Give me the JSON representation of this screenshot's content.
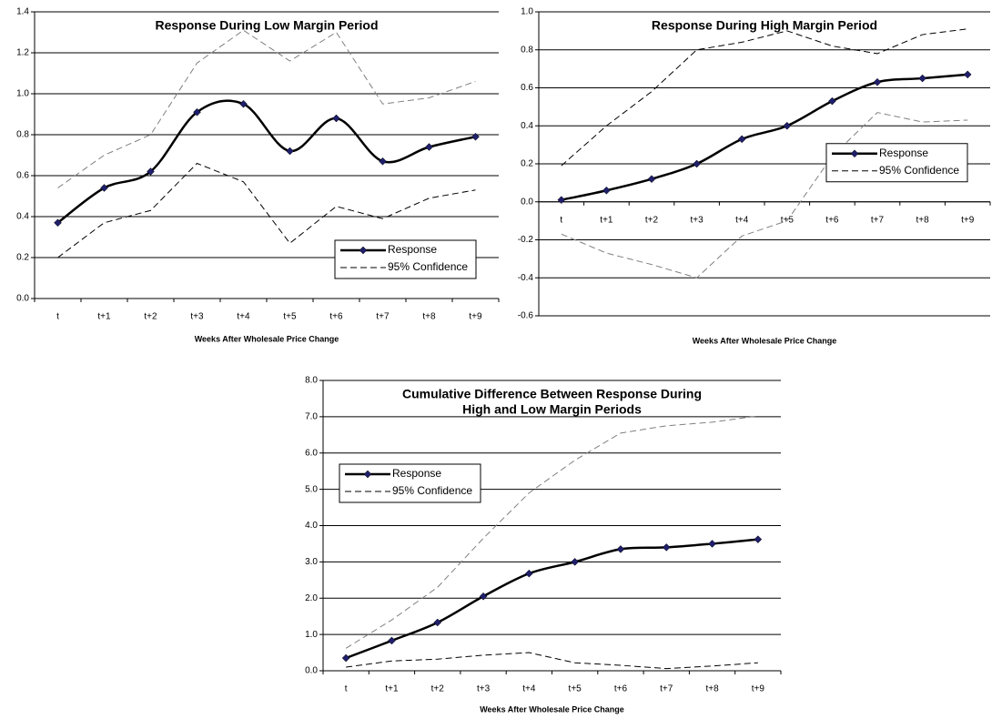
{
  "chart_data": [
    {
      "type": "line",
      "title": [
        "Response During Low Margin Period"
      ],
      "x_label": "Weeks After Wholesale Price Change",
      "categories": [
        "t",
        "t+1",
        "t+2",
        "t+3",
        "t+4",
        "t+5",
        "t+6",
        "t+7",
        "t+8",
        "t+9"
      ],
      "ylim": [
        0,
        1.4
      ],
      "yticks": [
        {
          "value": 0,
          "label": "0.0"
        },
        0.2,
        0.4,
        0.6,
        0.8,
        {
          "value": 1,
          "label": "1.0"
        },
        1.2,
        1.4
      ],
      "grid": true,
      "legend": "lower right",
      "series": [
        {
          "name": "Response",
          "color": "#000000",
          "marker_color": "#1f1f6b",
          "smooth": true,
          "values": [
            0.37,
            0.54,
            0.62,
            0.91,
            0.95,
            0.72,
            0.88,
            0.67,
            0.74,
            0.79
          ]
        },
        {
          "name": "95% Confidence",
          "color": "#808080",
          "lower_color": "#000000",
          "dashed": true,
          "values": [
            0.54,
            0.7,
            0.8,
            1.15,
            1.31,
            1.16,
            1.3,
            0.95,
            0.98,
            1.06
          ],
          "lower": [
            0.2,
            0.37,
            0.43,
            0.66,
            0.57,
            0.27,
            0.45,
            0.39,
            0.49,
            0.53
          ]
        }
      ]
    },
    {
      "type": "line",
      "title": [
        "Response During High Margin Period"
      ],
      "x_label": "Weeks After Wholesale Price Change",
      "categories": [
        "t",
        "t+1",
        "t+2",
        "t+3",
        "t+4",
        "t+5",
        "t+6",
        "t+7",
        "t+8",
        "t+9"
      ],
      "ylim": [
        -0.6,
        1.0
      ],
      "yticks": [
        -0.6,
        -0.4,
        -0.2,
        {
          "value": 0,
          "label": "0.0"
        },
        0.2,
        0.4,
        0.6,
        0.8,
        {
          "value": 1,
          "label": "1.0"
        }
      ],
      "grid": true,
      "legend": "lower right",
      "series": [
        {
          "name": "Response",
          "color": "#000000",
          "marker_color": "#1f1f6b",
          "smooth": true,
          "values": [
            0.01,
            0.06,
            0.12,
            0.2,
            0.33,
            0.4,
            0.53,
            0.63,
            0.65,
            0.67
          ]
        },
        {
          "name": "95% Confidence",
          "color": "#000000",
          "lower_color": "#808080",
          "dashed": true,
          "values": [
            0.19,
            0.4,
            0.58,
            0.8,
            0.84,
            0.9,
            0.82,
            0.78,
            0.88,
            0.91
          ],
          "lower": [
            -0.17,
            -0.27,
            -0.33,
            -0.4,
            -0.18,
            -0.1,
            0.24,
            0.47,
            0.42,
            0.43
          ]
        }
      ]
    },
    {
      "type": "line",
      "title": [
        "Cumulative Difference Between Response During",
        "High and Low Margin Periods"
      ],
      "x_label": "Weeks After Wholesale Price Change",
      "categories": [
        "t",
        "t+1",
        "t+2",
        "t+3",
        "t+4",
        "t+5",
        "t+6",
        "t+7",
        "t+8",
        "t+9"
      ],
      "ylim": [
        0,
        8
      ],
      "yticks": [
        {
          "value": 0,
          "label": "0.0"
        },
        {
          "value": 1,
          "label": "1.0"
        },
        {
          "value": 2,
          "label": "2.0"
        },
        {
          "value": 3,
          "label": "3.0"
        },
        {
          "value": 4,
          "label": "4.0"
        },
        {
          "value": 5,
          "label": "5.0"
        },
        {
          "value": 6,
          "label": "6.0"
        },
        {
          "value": 7,
          "label": "7.0"
        },
        {
          "value": 8,
          "label": "8.0"
        }
      ],
      "grid": true,
      "legend": "upper left",
      "series": [
        {
          "name": "Response",
          "color": "#000000",
          "marker_color": "#1f1f6b",
          "smooth": true,
          "values": [
            0.35,
            0.83,
            1.33,
            2.05,
            2.68,
            3.0,
            3.35,
            3.4,
            3.5,
            3.62
          ]
        },
        {
          "name": "95% Confidence",
          "color": "#808080",
          "lower_color": "#000000",
          "dashed": true,
          "values": [
            0.62,
            1.4,
            2.3,
            3.65,
            4.9,
            5.8,
            6.55,
            6.75,
            6.85,
            7.02
          ],
          "lower": [
            0.1,
            0.27,
            0.32,
            0.43,
            0.5,
            0.22,
            0.15,
            0.06,
            0.13,
            0.22
          ]
        }
      ]
    }
  ]
}
